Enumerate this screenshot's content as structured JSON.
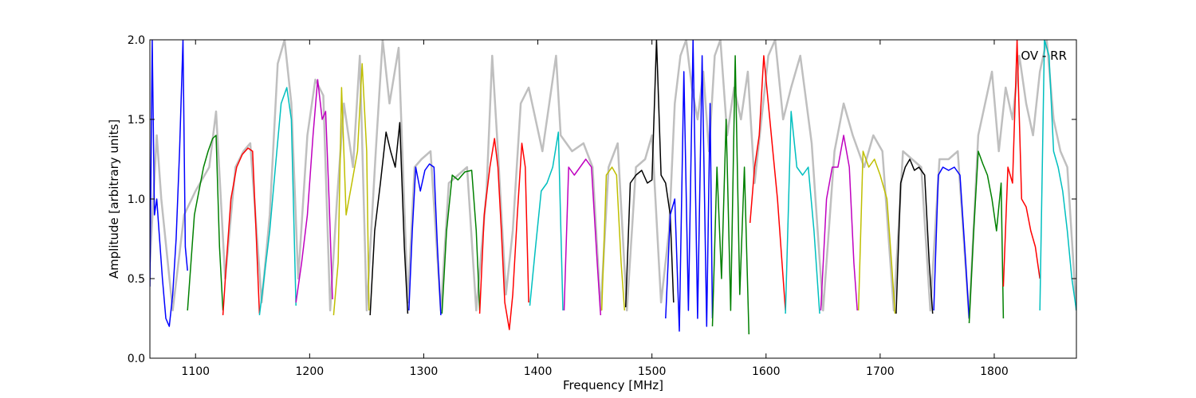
{
  "chart_data": {
    "type": "line",
    "title": "",
    "annotation": "OV - RR",
    "xlabel": "Frequency [MHz]",
    "ylabel": "Amplitude [arbitrary units]",
    "xlim": [
      1060,
      1872
    ],
    "ylim": [
      0,
      2.0
    ],
    "xticks": [
      1100,
      1200,
      1300,
      1400,
      1500,
      1600,
      1700,
      1800
    ],
    "yticks": [
      0.0,
      0.5,
      1.0,
      1.5,
      2.0
    ],
    "ytick_labels": [
      "0.0",
      "0.5",
      "1.0",
      "1.5",
      "2.0"
    ],
    "grid": false,
    "legend": "none",
    "background_series": {
      "color": "#bfbfbf",
      "x": [
        1060,
        1066,
        1070,
        1080,
        1090,
        1100,
        1112,
        1118,
        1126,
        1135,
        1142,
        1148,
        1158,
        1165,
        1172,
        1178,
        1184,
        1190,
        1198,
        1205,
        1212,
        1218,
        1224,
        1230,
        1238,
        1244,
        1250,
        1258,
        1264,
        1270,
        1278,
        1286,
        1292,
        1298,
        1306,
        1315,
        1322,
        1330,
        1338,
        1346,
        1355,
        1360,
        1365,
        1372,
        1378,
        1385,
        1392,
        1398,
        1404,
        1410,
        1416,
        1420,
        1430,
        1440,
        1448,
        1455,
        1462,
        1470,
        1478,
        1486,
        1494,
        1500,
        1508,
        1515,
        1520,
        1525,
        1530,
        1535,
        1540,
        1545,
        1550,
        1555,
        1560,
        1566,
        1572,
        1578,
        1584,
        1590,
        1596,
        1602,
        1608,
        1615,
        1622,
        1630,
        1640,
        1650,
        1660,
        1668,
        1676,
        1686,
        1694,
        1702,
        1712,
        1720,
        1728,
        1736,
        1744,
        1752,
        1760,
        1768,
        1778,
        1786,
        1792,
        1798,
        1804,
        1810,
        1816,
        1822,
        1828,
        1834,
        1840,
        1846,
        1852,
        1858,
        1864,
        1872
      ],
      "values": [
        0.6,
        1.4,
        1.0,
        0.3,
        0.9,
        1.05,
        1.2,
        1.55,
        0.5,
        1.2,
        1.3,
        1.35,
        0.35,
        0.9,
        1.85,
        2.0,
        1.6,
        0.5,
        1.4,
        1.75,
        1.65,
        0.3,
        1.0,
        1.6,
        1.2,
        1.9,
        0.3,
        1.3,
        2.0,
        1.6,
        1.95,
        0.35,
        1.2,
        1.25,
        1.3,
        0.3,
        1.1,
        1.15,
        1.2,
        0.3,
        1.05,
        1.9,
        1.3,
        0.4,
        0.8,
        1.6,
        1.7,
        1.5,
        1.3,
        1.6,
        1.9,
        1.4,
        1.3,
        1.35,
        1.2,
        0.3,
        1.2,
        1.35,
        0.3,
        1.2,
        1.25,
        1.4,
        0.35,
        0.8,
        1.6,
        1.9,
        2.0,
        1.7,
        1.5,
        1.8,
        1.3,
        1.9,
        2.0,
        1.4,
        1.7,
        1.5,
        1.8,
        1.1,
        1.5,
        1.9,
        2.0,
        1.5,
        1.7,
        1.9,
        1.35,
        0.3,
        1.3,
        1.6,
        1.4,
        1.2,
        1.4,
        1.3,
        0.3,
        1.3,
        1.25,
        1.2,
        0.3,
        1.25,
        1.25,
        1.3,
        0.25,
        1.4,
        1.6,
        1.8,
        1.3,
        1.7,
        1.5,
        1.9,
        1.6,
        1.4,
        1.8,
        2.0,
        1.5,
        1.3,
        1.2,
        0.3
      ]
    },
    "series": [
      {
        "color": "#0000ff",
        "x": [
          1060,
          1062,
          1064,
          1066,
          1068,
          1071,
          1074,
          1077,
          1080,
          1083,
          1086,
          1089,
          1091,
          1093
        ],
        "values": [
          0.45,
          2.0,
          0.9,
          1.0,
          0.8,
          0.5,
          0.25,
          0.2,
          0.4,
          0.75,
          1.3,
          2.0,
          0.7,
          0.55
        ]
      },
      {
        "color": "#008000",
        "x": [
          1093,
          1096,
          1099,
          1103,
          1107,
          1111,
          1115,
          1118,
          1121,
          1124
        ],
        "values": [
          0.3,
          0.6,
          0.9,
          1.05,
          1.2,
          1.3,
          1.38,
          1.4,
          0.7,
          0.3
        ]
      },
      {
        "color": "#ff0000",
        "x": [
          1124,
          1127,
          1131,
          1136,
          1141,
          1146,
          1150,
          1153,
          1156
        ],
        "values": [
          0.27,
          0.6,
          1.0,
          1.2,
          1.28,
          1.32,
          1.3,
          0.8,
          0.28
        ]
      },
      {
        "color": "#00bfbf",
        "x": [
          1156,
          1160,
          1165,
          1170,
          1175,
          1180,
          1184,
          1188
        ],
        "values": [
          0.27,
          0.5,
          0.8,
          1.2,
          1.6,
          1.7,
          1.5,
          0.33
        ]
      },
      {
        "color": "#bf00bf",
        "x": [
          1188,
          1193,
          1198,
          1203,
          1207,
          1211,
          1214,
          1217,
          1220
        ],
        "values": [
          0.35,
          0.6,
          0.9,
          1.4,
          1.75,
          1.5,
          1.55,
          1.0,
          0.37
        ]
      },
      {
        "color": "#bfbf00",
        "x": [
          1221,
          1225,
          1228,
          1232,
          1237,
          1242,
          1246,
          1250,
          1252
        ],
        "values": [
          0.27,
          0.6,
          1.7,
          0.9,
          1.1,
          1.3,
          1.85,
          1.3,
          0.3
        ]
      },
      {
        "color": "#000000",
        "x": [
          1253,
          1257,
          1262,
          1267,
          1271,
          1275,
          1279,
          1283,
          1286
        ],
        "values": [
          0.27,
          0.8,
          1.1,
          1.42,
          1.3,
          1.2,
          1.48,
          0.7,
          0.28
        ]
      },
      {
        "color": "#0000ff",
        "x": [
          1287,
          1290,
          1293,
          1297,
          1301,
          1305,
          1309,
          1312,
          1315
        ],
        "values": [
          0.3,
          0.8,
          1.2,
          1.05,
          1.18,
          1.22,
          1.2,
          0.7,
          0.27
        ]
      },
      {
        "color": "#008000",
        "x": [
          1316,
          1320,
          1325,
          1330,
          1336,
          1342,
          1346,
          1349
        ],
        "values": [
          0.28,
          0.8,
          1.15,
          1.12,
          1.17,
          1.18,
          0.8,
          0.3
        ]
      },
      {
        "color": "#ff0000",
        "x": [
          1349,
          1353,
          1358,
          1362,
          1365,
          1368,
          1371,
          1375,
          1378,
          1382,
          1386,
          1389,
          1392
        ],
        "values": [
          0.28,
          0.9,
          1.2,
          1.38,
          1.2,
          0.8,
          0.35,
          0.18,
          0.4,
          0.9,
          1.35,
          1.2,
          0.35
        ]
      },
      {
        "color": "#00bfbf",
        "x": [
          1393,
          1398,
          1403,
          1408,
          1413,
          1418,
          1422
        ],
        "values": [
          0.33,
          0.7,
          1.05,
          1.1,
          1.2,
          1.42,
          0.3
        ]
      },
      {
        "color": "#bf00bf",
        "x": [
          1423,
          1427,
          1432,
          1437,
          1442,
          1447,
          1452,
          1455
        ],
        "values": [
          0.3,
          1.2,
          1.15,
          1.2,
          1.25,
          1.2,
          0.6,
          0.27
        ]
      },
      {
        "color": "#bfbf00",
        "x": [
          1456,
          1460,
          1465,
          1469,
          1473,
          1476
        ],
        "values": [
          0.3,
          1.15,
          1.2,
          1.15,
          0.6,
          0.3
        ]
      },
      {
        "color": "#000000",
        "x": [
          1477,
          1481,
          1486,
          1491,
          1496,
          1500,
          1504,
          1508,
          1512,
          1516,
          1519
        ],
        "values": [
          0.32,
          1.1,
          1.15,
          1.18,
          1.1,
          1.12,
          2.0,
          1.15,
          1.1,
          0.9,
          0.35
        ]
      },
      {
        "color": "#0000ff",
        "x": [
          1512,
          1516,
          1520,
          1524,
          1528,
          1532,
          1536,
          1540,
          1544,
          1548,
          1551,
          1553
        ],
        "values": [
          0.25,
          0.9,
          1.0,
          0.17,
          1.8,
          0.3,
          2.0,
          0.25,
          1.9,
          0.2,
          1.6,
          0.25
        ]
      },
      {
        "color": "#008000",
        "x": [
          1553,
          1557,
          1561,
          1565,
          1569,
          1573,
          1577,
          1581,
          1585
        ],
        "values": [
          0.2,
          1.2,
          0.5,
          1.5,
          0.3,
          1.9,
          0.4,
          1.2,
          0.15
        ]
      },
      {
        "color": "#ff0000",
        "x": [
          1586,
          1590,
          1594,
          1598,
          1602,
          1606,
          1610,
          1614,
          1617
        ],
        "values": [
          0.85,
          1.2,
          1.4,
          1.9,
          1.6,
          1.3,
          1.0,
          0.6,
          0.3
        ]
      },
      {
        "color": "#00bfbf",
        "x": [
          1617,
          1622,
          1627,
          1632,
          1637,
          1642,
          1647
        ],
        "values": [
          0.28,
          1.55,
          1.2,
          1.15,
          1.2,
          0.8,
          0.28
        ]
      },
      {
        "color": "#bf00bf",
        "x": [
          1648,
          1653,
          1658,
          1663,
          1668,
          1673,
          1677,
          1680
        ],
        "values": [
          0.3,
          1.0,
          1.2,
          1.2,
          1.4,
          1.2,
          0.6,
          0.3
        ]
      },
      {
        "color": "#bfbf00",
        "x": [
          1681,
          1685,
          1690,
          1695,
          1700,
          1706,
          1710,
          1713
        ],
        "values": [
          0.3,
          1.3,
          1.2,
          1.25,
          1.15,
          1.0,
          0.6,
          0.28
        ]
      },
      {
        "color": "#000000",
        "x": [
          1714,
          1718,
          1722,
          1726,
          1730,
          1734,
          1739,
          1743,
          1746
        ],
        "values": [
          0.28,
          1.1,
          1.2,
          1.25,
          1.18,
          1.2,
          1.15,
          0.6,
          0.28
        ]
      },
      {
        "color": "#0000ff",
        "x": [
          1747,
          1751,
          1755,
          1760,
          1765,
          1770,
          1775,
          1778
        ],
        "values": [
          0.3,
          1.15,
          1.2,
          1.18,
          1.2,
          1.15,
          0.6,
          0.25
        ]
      },
      {
        "color": "#008000",
        "x": [
          1778,
          1782,
          1786,
          1790,
          1794,
          1798,
          1802,
          1806,
          1808
        ],
        "values": [
          0.22,
          0.8,
          1.3,
          1.22,
          1.15,
          1.0,
          0.8,
          1.1,
          0.25
        ]
      },
      {
        "color": "#ff0000",
        "x": [
          1808,
          1812,
          1816,
          1820,
          1824,
          1828,
          1832,
          1836,
          1840
        ],
        "values": [
          0.45,
          1.2,
          1.1,
          2.0,
          1.0,
          0.95,
          0.8,
          0.7,
          0.5
        ]
      },
      {
        "color": "#00bfbf",
        "x": [
          1840,
          1844,
          1848,
          1852,
          1856,
          1860,
          1864,
          1868,
          1872
        ],
        "values": [
          0.3,
          2.0,
          1.9,
          1.3,
          1.2,
          1.05,
          0.8,
          0.5,
          0.3
        ]
      }
    ]
  }
}
